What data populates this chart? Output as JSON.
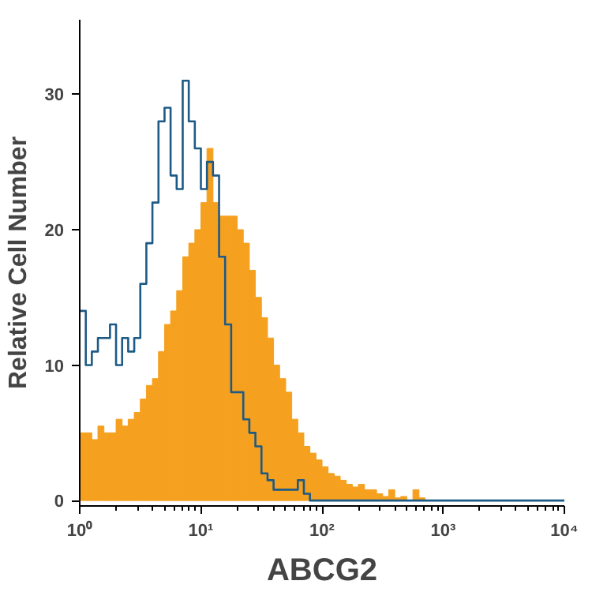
{
  "chart_data": {
    "type": "histogram",
    "xlabel": "ABCG2",
    "ylabel": "Relative Cell Number",
    "log": "x",
    "xlim": [
      1,
      10000
    ],
    "ylim": [
      -0.4,
      35.5
    ],
    "xticks": [
      {
        "value": 1,
        "label": "10⁰"
      },
      {
        "value": 10,
        "label": "10¹"
      },
      {
        "value": 100,
        "label": "10²"
      },
      {
        "value": 1000,
        "label": "10³"
      },
      {
        "value": 10000,
        "label": "10⁴"
      }
    ],
    "yticks": [
      0,
      10,
      20,
      30
    ],
    "grid": false,
    "series": [
      {
        "color": "#f5a01f",
        "bins": [
          1,
          1.122,
          1.259,
          1.413,
          1.585,
          1.778,
          1.995,
          2.239,
          2.512,
          2.818,
          3.162,
          3.548,
          3.981,
          4.467,
          5.012,
          5.623,
          6.31,
          7.079,
          7.943,
          8.913,
          10,
          11.22,
          12.59,
          14.13,
          15.85,
          17.78,
          19.95,
          22.39,
          25.12,
          28.18,
          31.62,
          35.48,
          39.81,
          44.67,
          50.12,
          56.23,
          63.1,
          70.79,
          79.43,
          89.13,
          100,
          112.2,
          125.9,
          141.3,
          158.5,
          177.8,
          199.5,
          223.9,
          251.2,
          281.8,
          316.2,
          354.8,
          398.1,
          446.7,
          501.2,
          562.3,
          631,
          707.9
        ],
        "values": [
          5,
          5,
          4.5,
          5.5,
          5,
          5,
          6,
          5.5,
          6,
          6.5,
          7.5,
          8.5,
          9,
          11,
          13,
          14,
          15.5,
          18,
          19,
          20,
          22,
          26,
          22,
          21,
          21,
          21,
          20,
          19,
          17,
          15,
          13.5,
          12,
          10,
          9,
          8,
          6,
          5,
          4,
          3.5,
          3,
          2.5,
          2,
          1.8,
          1.5,
          1.2,
          1,
          1.2,
          0.8,
          0.8,
          0.5,
          0.3,
          0.8,
          0.2,
          0.3,
          0,
          0.8,
          0.2
        ]
      },
      {
        "type": "step",
        "color": "#1d5a85",
        "x": [
          1,
          1.122,
          1.259,
          1.413,
          1.585,
          1.778,
          1.995,
          2.239,
          2.512,
          2.818,
          3.162,
          3.548,
          3.981,
          4.467,
          5.012,
          5.623,
          6.31,
          7.079,
          7.943,
          8.913,
          10,
          11.22,
          12.59,
          14.13,
          15.85,
          17.78,
          19.95,
          22.39,
          25.12,
          28.18,
          31.62,
          35.48,
          39.81,
          44.67,
          50.12,
          56.23,
          63.1,
          70.79,
          79.43,
          10000
        ],
        "values": [
          14,
          10,
          11,
          12,
          12,
          13,
          10,
          12,
          11,
          12,
          16,
          19,
          22,
          28,
          29,
          24,
          23,
          31,
          28,
          26,
          23,
          25,
          24,
          18,
          13,
          8,
          8,
          6,
          5,
          4,
          2,
          1.5,
          0.8,
          0.8,
          0.8,
          0.8,
          1.5,
          0.5,
          0,
          0
        ]
      }
    ]
  }
}
